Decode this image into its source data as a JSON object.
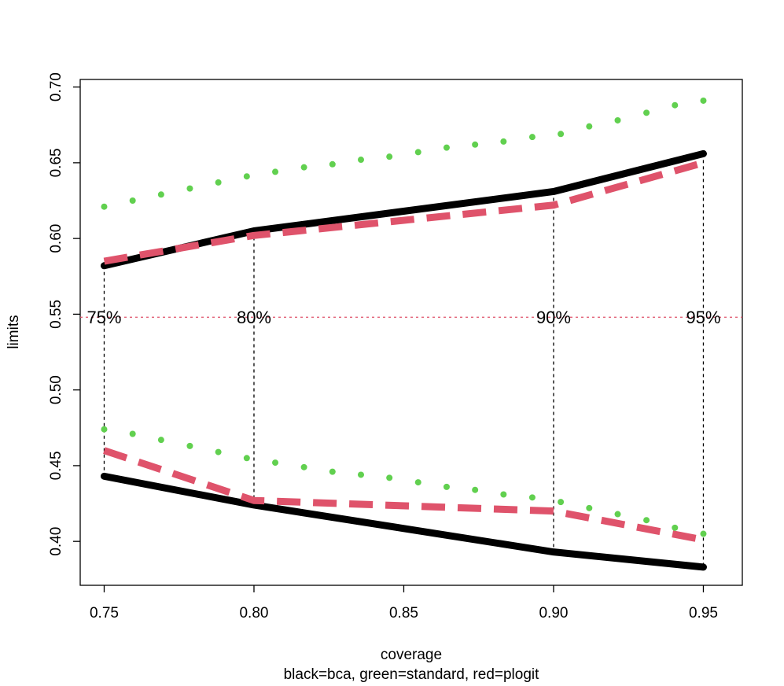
{
  "chart_data": {
    "type": "line",
    "xlabel": "coverage",
    "ylabel": "limits",
    "subtitle": "black=bca, green=standard, red=plogit",
    "xlim": [
      0.742,
      0.963
    ],
    "ylim": [
      0.371,
      0.705
    ],
    "xticks": [
      0.75,
      {
        "value": 0.8,
        "label": "0.80"
      },
      0.85,
      {
        "value": 0.9,
        "label": "0.90"
      },
      0.95
    ],
    "yticks": [
      {
        "value": 0.4,
        "label": "0.40"
      },
      0.45,
      {
        "value": 0.5,
        "label": "0.50"
      },
      0.55,
      {
        "value": 0.6,
        "label": "0.60"
      },
      0.65,
      {
        "value": 0.7,
        "label": "0.70"
      }
    ],
    "series": [
      {
        "color": "#000000",
        "style": "solid",
        "x": [
          0.75,
          0.8,
          0.9,
          0.95
        ],
        "values": [
          0.582,
          0.605,
          0.631,
          0.656
        ]
      },
      {
        "color": "#000000",
        "style": "solid",
        "x": [
          0.75,
          0.8,
          0.9,
          0.95
        ],
        "values": [
          0.443,
          0.424,
          0.393,
          0.383
        ]
      },
      {
        "color": "#df536b",
        "style": "dashed",
        "x": [
          0.75,
          0.8,
          0.9,
          0.95
        ],
        "values": [
          0.585,
          0.602,
          0.622,
          0.65
        ]
      },
      {
        "color": "#df536b",
        "style": "dashed",
        "x": [
          0.75,
          0.8,
          0.9,
          0.95
        ],
        "values": [
          0.46,
          0.427,
          0.42,
          0.401
        ]
      },
      {
        "color": "#61d04f",
        "style": "dotted",
        "x": [
          0.75,
          0.7595,
          0.769,
          0.7786,
          0.7881,
          0.7976,
          0.8071,
          0.8167,
          0.8262,
          0.8357,
          0.8452,
          0.8548,
          0.8643,
          0.8738,
          0.8833,
          0.8929,
          0.9024,
          0.9119,
          0.9214,
          0.931,
          0.9405,
          0.95
        ],
        "values": [
          0.621,
          0.625,
          0.629,
          0.633,
          0.637,
          0.641,
          0.644,
          0.647,
          0.649,
          0.652,
          0.654,
          0.657,
          0.66,
          0.662,
          0.664,
          0.667,
          0.669,
          0.674,
          0.678,
          0.683,
          0.688,
          0.691
        ]
      },
      {
        "color": "#61d04f",
        "style": "dotted",
        "x": [
          0.75,
          0.7595,
          0.769,
          0.7786,
          0.7881,
          0.7976,
          0.8071,
          0.8167,
          0.8262,
          0.8357,
          0.8452,
          0.8548,
          0.8643,
          0.8738,
          0.8833,
          0.8929,
          0.9024,
          0.9119,
          0.9214,
          0.931,
          0.9405,
          0.95
        ],
        "values": [
          0.474,
          0.471,
          0.467,
          0.463,
          0.459,
          0.455,
          0.452,
          0.449,
          0.446,
          0.444,
          0.442,
          0.439,
          0.436,
          0.434,
          0.431,
          0.429,
          0.426,
          0.422,
          0.418,
          0.414,
          0.409,
          0.405
        ]
      }
    ],
    "hline": {
      "value": 0.548,
      "color": "#df536b"
    },
    "annotations": [
      {
        "text": "75%",
        "x": 0.75
      },
      {
        "text": "80%",
        "x": 0.8
      },
      {
        "text": "90%",
        "x": 0.9
      },
      {
        "text": "95%",
        "x": 0.95
      }
    ]
  }
}
